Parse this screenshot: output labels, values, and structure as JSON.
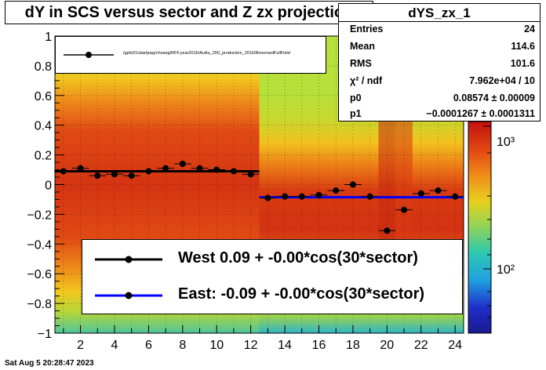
{
  "title": "dY in SCS versus sector and Z zx projection",
  "stats": {
    "name": "dYS_zx_1",
    "rows": [
      {
        "label": "Entries",
        "value": "24"
      },
      {
        "label": "Mean",
        "value": "114.6"
      },
      {
        "label": "RMS",
        "value": "101.6"
      },
      {
        "label": "χ² / ndf",
        "value": "7.962e+04 / 10"
      },
      {
        "label": "p0",
        "value": "0.08574 ± 0.00009"
      },
      {
        "label": "p1",
        "value": "−0.0001267 ± 0.0001311"
      }
    ]
  },
  "top_legend": {
    "label": "/gpfs01/star/pwg/chsang/RFF.year2016/AuAu_200_production_2016/ReversedFullField"
  },
  "bottom_legend": {
    "west": "West  0.09 + -0.00*cos(30*sector)",
    "east": "East: -0.09 + -0.00*cos(30*sector)"
  },
  "footer": "Sat Aug  5 20:28:47 2023",
  "colors": {
    "west_fit": "#000000",
    "east_fit": "#0000ff",
    "points": "#000000"
  },
  "chart_data": {
    "type": "scatter",
    "x_range": [
      0.5,
      24.5
    ],
    "y_range": [
      -1,
      1
    ],
    "x_ticks": [
      2,
      4,
      6,
      8,
      10,
      12,
      14,
      16,
      18,
      20,
      22,
      24
    ],
    "x_tick_labels": [
      "2",
      "4",
      "6",
      "8",
      "10",
      "12",
      "14",
      "16",
      "18",
      "20",
      "22",
      "24"
    ],
    "y_ticks": [
      -1,
      -0.8,
      -0.6,
      -0.4,
      -0.2,
      0,
      0.2,
      0.4,
      0.6,
      0.8,
      1
    ],
    "y_tick_labels": [
      "−1",
      "−0.8",
      "−0.6",
      "−0.4",
      "−0.2",
      "0",
      "0.2",
      "0.4",
      "0.6",
      "0.8",
      "1"
    ],
    "colorbar_labels": [
      "10²",
      "10³"
    ],
    "series": [
      {
        "name": "West",
        "x": [
          1,
          2,
          3,
          4,
          5,
          6,
          7,
          8,
          9,
          10,
          11,
          12
        ],
        "y": [
          0.09,
          0.11,
          0.06,
          0.07,
          0.06,
          0.09,
          0.11,
          0.14,
          0.11,
          0.1,
          0.09,
          0.07
        ]
      },
      {
        "name": "East",
        "x": [
          13,
          14,
          15,
          16,
          17,
          18,
          19,
          20,
          21,
          22,
          23,
          24
        ],
        "y": [
          -0.09,
          -0.08,
          -0.08,
          -0.07,
          -0.04,
          0.0,
          -0.08,
          -0.31,
          -0.17,
          -0.06,
          -0.04,
          -0.08
        ]
      }
    ],
    "fits": [
      {
        "name": "West",
        "x": [
          0.5,
          12.5
        ],
        "y": [
          0.09,
          0.09
        ]
      },
      {
        "name": "East",
        "x": [
          12.5,
          24.5
        ],
        "y": [
          -0.085,
          -0.085
        ]
      }
    ]
  }
}
